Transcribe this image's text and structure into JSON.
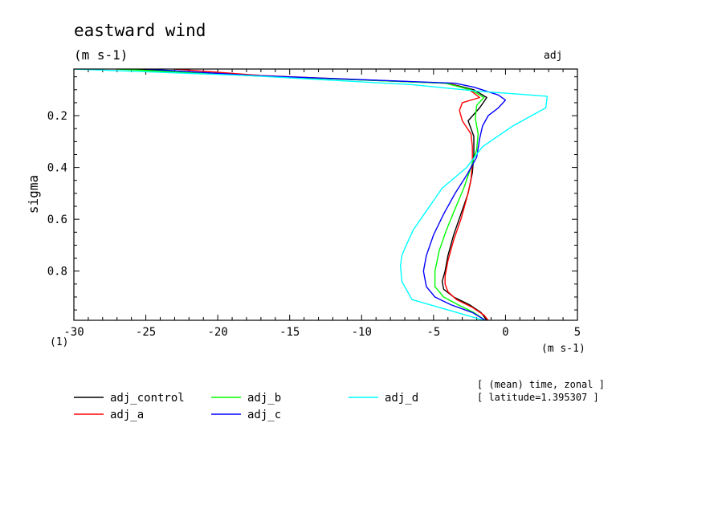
{
  "chart_data": {
    "type": "line",
    "title": "eastward wind",
    "units": "(m s-1)",
    "corner_label": "adj",
    "ylabel": "sigma",
    "xlabel": "(m s-1)",
    "x_origin_label": "(1)",
    "xlim": [
      -30,
      5
    ],
    "ylim": [
      0.02,
      0.99
    ],
    "y_inverted": true,
    "xticks": [
      -30,
      -25,
      -20,
      -15,
      -10,
      -5,
      0,
      5
    ],
    "xtick_labels": [
      "-30",
      "-25",
      "-20",
      "-15",
      "-10",
      "-5",
      "0",
      "5"
    ],
    "yticks": [
      0.2,
      0.4,
      0.6,
      0.8
    ],
    "ytick_labels": [
      "0.2",
      "0.4",
      "0.6",
      "0.8"
    ],
    "annotation_lines": [
      "[ (mean) time, zonal ]",
      "[ latitude=1.395307 ]"
    ],
    "series": [
      {
        "name": "adj_control",
        "color": "#000000",
        "sigma": [
          0.02,
          0.045,
          0.075,
          0.1,
          0.13,
          0.17,
          0.22,
          0.28,
          0.35,
          0.42,
          0.5,
          0.58,
          0.66,
          0.74,
          0.8,
          0.84,
          0.87,
          0.9,
          0.93,
          0.96,
          0.99
        ],
        "values": [
          -26,
          -18,
          -4,
          -2.2,
          -1.3,
          -1.8,
          -2.6,
          -2.2,
          -2.2,
          -2.3,
          -2.6,
          -3.1,
          -3.6,
          -4.0,
          -4.2,
          -4.4,
          -4.3,
          -3.6,
          -2.5,
          -1.7,
          -1.3
        ]
      },
      {
        "name": "adj_a",
        "color": "#ff0000",
        "sigma": [
          0.02,
          0.045,
          0.075,
          0.1,
          0.13,
          0.15,
          0.18,
          0.22,
          0.27,
          0.32,
          0.38,
          0.45,
          0.52,
          0.6,
          0.68,
          0.76,
          0.82,
          0.85,
          0.88,
          0.91,
          0.94,
          0.97,
          0.99
        ],
        "values": [
          -23,
          -17,
          -4,
          -2.5,
          -1.8,
          -3.0,
          -3.2,
          -3.0,
          -2.4,
          -2.3,
          -2.3,
          -2.4,
          -2.7,
          -3.1,
          -3.6,
          -4.0,
          -4.2,
          -4.2,
          -4.0,
          -3.4,
          -2.3,
          -1.5,
          -1.2
        ]
      },
      {
        "name": "adj_b",
        "color": "#00ff00",
        "sigma": [
          0.02,
          0.045,
          0.075,
          0.1,
          0.13,
          0.16,
          0.21,
          0.27,
          0.33,
          0.4,
          0.48,
          0.56,
          0.64,
          0.72,
          0.8,
          0.86,
          0.9,
          0.93,
          0.96,
          0.99
        ],
        "values": [
          -27,
          -18,
          -4.2,
          -2.4,
          -1.5,
          -2.0,
          -2.1,
          -1.9,
          -2.0,
          -2.4,
          -2.9,
          -3.5,
          -4.1,
          -4.6,
          -4.9,
          -4.9,
          -4.3,
          -3.3,
          -2.2,
          -1.4
        ]
      },
      {
        "name": "adj_c",
        "color": "#0000ff",
        "sigma": [
          0.02,
          0.045,
          0.075,
          0.09,
          0.12,
          0.14,
          0.17,
          0.2,
          0.24,
          0.29,
          0.36,
          0.43,
          0.5,
          0.58,
          0.66,
          0.74,
          0.8,
          0.86,
          0.9,
          0.93,
          0.96,
          0.99
        ],
        "values": [
          -25,
          -17.5,
          -3.5,
          -2.2,
          -0.5,
          0.0,
          -0.5,
          -1.2,
          -1.6,
          -1.8,
          -2.0,
          -2.7,
          -3.5,
          -4.3,
          -5.0,
          -5.5,
          -5.7,
          -5.5,
          -4.9,
          -3.8,
          -2.3,
          -1.4
        ]
      },
      {
        "name": "adj_d",
        "color": "#00ffff",
        "sigma": [
          0.02,
          0.045,
          0.08,
          0.105,
          0.125,
          0.17,
          0.24,
          0.32,
          0.4,
          0.48,
          0.56,
          0.64,
          0.7,
          0.74,
          0.78,
          0.84,
          0.91,
          0.95,
          0.99
        ],
        "values": [
          -30,
          -18,
          -6.5,
          -2.0,
          2.9,
          2.8,
          0.5,
          -1.6,
          -2.7,
          -4.4,
          -5.4,
          -6.4,
          -6.9,
          -7.2,
          -7.3,
          -7.2,
          -6.5,
          -4.0,
          -1.5
        ]
      }
    ]
  }
}
